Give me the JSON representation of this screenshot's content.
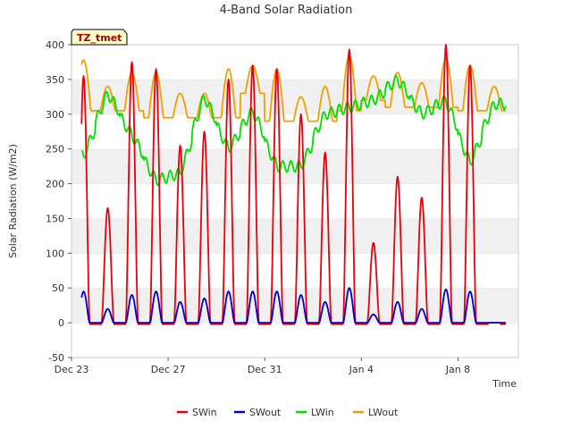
{
  "chart_data": {
    "type": "line",
    "title": "4-Band Solar Radiation",
    "xlabel": "Time",
    "ylabel": "Solar Radiation (W/m2)",
    "annotation": "TZ_tmet",
    "ylim": [
      -50,
      400
    ],
    "xlim": [
      "2023-12-23",
      "2024-01-10"
    ],
    "yticks": [
      -50,
      0,
      50,
      100,
      150,
      200,
      250,
      300,
      350,
      400
    ],
    "xticks": [
      {
        "label": "Dec 23",
        "date": "2023-12-23"
      },
      {
        "label": "Dec 27",
        "date": "2023-12-27"
      },
      {
        "label": "Dec 31",
        "date": "2023-12-31"
      },
      {
        "label": "Jan 4",
        "date": "2024-01-04"
      },
      {
        "label": "Jan 8",
        "date": "2024-01-08"
      }
    ],
    "grid": "horizontal bands",
    "legend_position": "bottom",
    "x": [
      "2023-12-23 12:00",
      "2023-12-24 12:00",
      "2023-12-25 12:00",
      "2023-12-26 12:00",
      "2023-12-27 12:00",
      "2023-12-28 12:00",
      "2023-12-29 12:00",
      "2023-12-30 12:00",
      "2023-12-31 12:00",
      "2024-01-01 12:00",
      "2024-01-02 12:00",
      "2024-01-03 12:00",
      "2024-01-04 12:00",
      "2024-01-05 12:00",
      "2024-01-06 12:00",
      "2024-01-07 12:00",
      "2024-01-08 12:00",
      "2024-01-09 12:00"
    ],
    "series": [
      {
        "name": "SWin",
        "color": "#e8000b",
        "values": [
          355,
          165,
          375,
          365,
          255,
          275,
          350,
          370,
          365,
          300,
          245,
          393,
          115,
          210,
          180,
          400,
          370,
          0
        ]
      },
      {
        "name": "SWout",
        "color": "#0000cc",
        "values": [
          45,
          20,
          40,
          45,
          30,
          35,
          45,
          45,
          45,
          40,
          30,
          50,
          12,
          30,
          20,
          48,
          45,
          0
        ]
      },
      {
        "name": "LWin",
        "color": "#00e000",
        "values": [
          240,
          330,
          270,
          205,
          215,
          325,
          250,
          305,
          225,
          225,
          300,
          310,
          320,
          350,
          300,
          320,
          230,
          315
        ]
      },
      {
        "name": "LWout",
        "color": "#f0a000",
        "values": [
          378,
          340,
          360,
          360,
          330,
          330,
          365,
          370,
          365,
          325,
          340,
          385,
          355,
          360,
          345,
          380,
          370,
          340
        ]
      }
    ]
  }
}
